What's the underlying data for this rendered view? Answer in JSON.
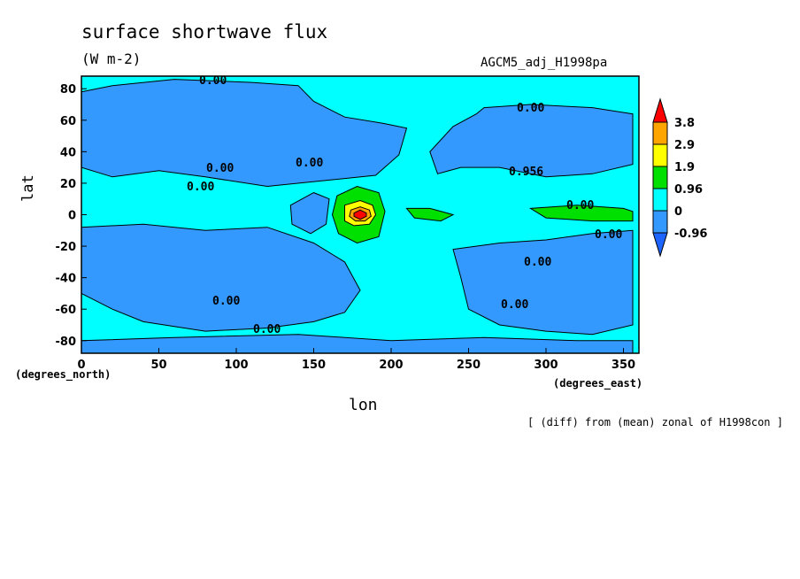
{
  "chart_data": {
    "type": "heatmap",
    "title": "surface shortwave flux",
    "units": "(W m-2)",
    "run_name": "AGCM5_adj_H1998pa",
    "xlabel": "lon",
    "ylabel": "lat",
    "x_unit": "(degrees_east)",
    "y_unit": "(degrees_north)",
    "caption": "[ (diff) from (mean) zonal of H1998con ]",
    "xlim": [
      0,
      360
    ],
    "ylim": [
      -88,
      88
    ],
    "x_ticks": [
      "0",
      "50",
      "100",
      "150",
      "200",
      "250",
      "300",
      "350"
    ],
    "y_ticks": [
      "80",
      "60",
      "40",
      "20",
      "0",
      "-20",
      "-40",
      "-60",
      "-80"
    ],
    "colorbar": {
      "levels": [
        "3.8",
        "2.9",
        "1.9",
        "0.96",
        "0",
        "-0.96"
      ],
      "colors": [
        "#ff0000",
        "#ffa500",
        "#ffff00",
        "#00e000",
        "#00ffff",
        "#3399ff",
        "#1e64ff"
      ]
    },
    "contour_labels": [
      "0.00",
      "0.00",
      "0.00",
      "0.00",
      "0.00",
      "0.00",
      "0.00",
      "0.956",
      "0.00",
      "0.00",
      "0.00",
      "0.00"
    ],
    "regions": [
      {
        "name": "north-band-west",
        "level": "-0.96",
        "points": [
          [
            0,
            78
          ],
          [
            20,
            82
          ],
          [
            60,
            86
          ],
          [
            110,
            84
          ],
          [
            140,
            82
          ],
          [
            150,
            72
          ],
          [
            170,
            62
          ],
          [
            195,
            58
          ],
          [
            210,
            55
          ],
          [
            205,
            38
          ],
          [
            190,
            25
          ],
          [
            160,
            22
          ],
          [
            120,
            18
          ],
          [
            80,
            24
          ],
          [
            50,
            28
          ],
          [
            20,
            24
          ],
          [
            0,
            30
          ]
        ]
      },
      {
        "name": "north-band-east",
        "level": "-0.96",
        "points": [
          [
            260,
            68
          ],
          [
            290,
            70
          ],
          [
            330,
            68
          ],
          [
            356,
            64
          ],
          [
            356,
            32
          ],
          [
            330,
            26
          ],
          [
            300,
            24
          ],
          [
            270,
            30
          ],
          [
            245,
            30
          ],
          [
            230,
            26
          ],
          [
            225,
            40
          ],
          [
            240,
            56
          ],
          [
            255,
            64
          ]
        ]
      },
      {
        "name": "south-band-west",
        "level": "-0.96",
        "points": [
          [
            0,
            -8
          ],
          [
            40,
            -6
          ],
          [
            80,
            -10
          ],
          [
            120,
            -8
          ],
          [
            150,
            -18
          ],
          [
            170,
            -30
          ],
          [
            180,
            -48
          ],
          [
            170,
            -62
          ],
          [
            150,
            -68
          ],
          [
            120,
            -72
          ],
          [
            80,
            -74
          ],
          [
            40,
            -68
          ],
          [
            20,
            -60
          ],
          [
            0,
            -50
          ]
        ]
      },
      {
        "name": "south-band-east",
        "level": "-0.96",
        "points": [
          [
            240,
            -22
          ],
          [
            270,
            -18
          ],
          [
            300,
            -16
          ],
          [
            330,
            -12
          ],
          [
            356,
            -10
          ],
          [
            356,
            -70
          ],
          [
            330,
            -76
          ],
          [
            300,
            -74
          ],
          [
            270,
            -70
          ],
          [
            250,
            -60
          ],
          [
            245,
            -40
          ]
        ]
      },
      {
        "name": "antarctic-band",
        "level": "-0.96",
        "points": [
          [
            0,
            -80
          ],
          [
            60,
            -78
          ],
          [
            140,
            -76
          ],
          [
            200,
            -80
          ],
          [
            260,
            -78
          ],
          [
            320,
            -80
          ],
          [
            356,
            -80
          ],
          [
            356,
            -88
          ],
          [
            0,
            -88
          ]
        ]
      },
      {
        "name": "pacific-low",
        "level": "-0.96",
        "points": [
          [
            135,
            6
          ],
          [
            150,
            14
          ],
          [
            160,
            10
          ],
          [
            158,
            -6
          ],
          [
            148,
            -12
          ],
          [
            136,
            -6
          ]
        ]
      },
      {
        "name": "warm-pool-green",
        "level": "0.96",
        "points": [
          [
            165,
            12
          ],
          [
            178,
            18
          ],
          [
            192,
            14
          ],
          [
            196,
            2
          ],
          [
            192,
            -14
          ],
          [
            178,
            -18
          ],
          [
            166,
            -12
          ],
          [
            162,
            0
          ]
        ]
      },
      {
        "name": "warm-pool-yellow",
        "level": "1.9",
        "points": [
          [
            170,
            6
          ],
          [
            180,
            9
          ],
          [
            188,
            6
          ],
          [
            190,
            0
          ],
          [
            186,
            -6
          ],
          [
            176,
            -7
          ],
          [
            170,
            -4
          ]
        ]
      },
      {
        "name": "warm-pool-orange",
        "level": "2.9",
        "points": [
          [
            174,
            3
          ],
          [
            180,
            5
          ],
          [
            186,
            3
          ],
          [
            187,
            -1
          ],
          [
            183,
            -4
          ],
          [
            177,
            -4
          ],
          [
            173,
            -1
          ]
        ]
      },
      {
        "name": "warm-pool-red",
        "level": "3.8",
        "points": [
          [
            176,
            1
          ],
          [
            180,
            3
          ],
          [
            184,
            1
          ],
          [
            184,
            -1
          ],
          [
            180,
            -3
          ],
          [
            176,
            -1
          ]
        ]
      },
      {
        "name": "east-pacific-green",
        "level": "0.96",
        "points": [
          [
            210,
            4
          ],
          [
            225,
            4
          ],
          [
            240,
            0
          ],
          [
            232,
            -4
          ],
          [
            215,
            -2
          ]
        ]
      },
      {
        "name": "atlantic-green",
        "level": "0.96",
        "points": [
          [
            290,
            4
          ],
          [
            320,
            6
          ],
          [
            350,
            4
          ],
          [
            356,
            2
          ],
          [
            356,
            -4
          ],
          [
            330,
            -4
          ],
          [
            300,
            -2
          ]
        ]
      }
    ]
  }
}
